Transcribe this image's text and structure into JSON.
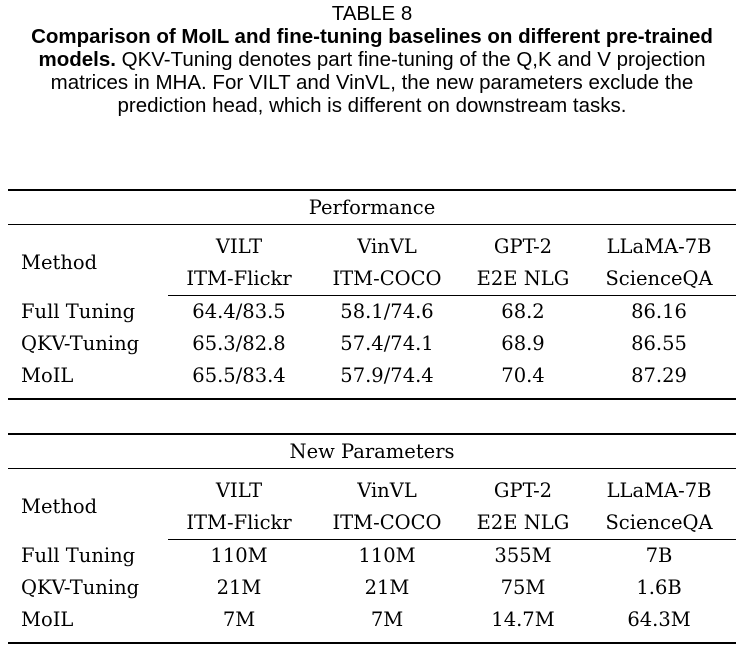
{
  "caption": {
    "label": "TABLE 8",
    "bold": "Comparison of MoIL and fine-tuning baselines on different pre-trained models.",
    "text": " QKV-Tuning denotes part fine-tuning of the Q,K and V projection matrices in MHA. For VILT and VinVL, the new parameters exclude the prediction head, which is different on downstream tasks."
  },
  "columns": {
    "method": "Method",
    "models": [
      "VILT",
      "VinVL",
      "GPT-2",
      "LLaMA-7B"
    ],
    "tasks": [
      "ITM-Flickr",
      "ITM-COCO",
      "E2E NLG",
      "ScienceQA"
    ]
  },
  "performance": {
    "section_title": "Performance",
    "rows": [
      {
        "method": "Full Tuning",
        "values": [
          "64.4/83.5",
          "58.1/74.6",
          "68.2",
          "86.16"
        ]
      },
      {
        "method": "QKV-Tuning",
        "values": [
          "65.3/82.8",
          "57.4/74.1",
          "68.9",
          "86.55"
        ]
      },
      {
        "method": "MoIL",
        "values": [
          "65.5/83.4",
          "57.9/74.4",
          "70.4",
          "87.29"
        ]
      }
    ]
  },
  "parameters": {
    "section_title": "New Parameters",
    "rows": [
      {
        "method": "Full Tuning",
        "values": [
          "110M",
          "110M",
          "355M",
          "7B"
        ]
      },
      {
        "method": "QKV-Tuning",
        "values": [
          "21M",
          "21M",
          "75M",
          "1.6B"
        ]
      },
      {
        "method": "MoIL",
        "values": [
          "7M",
          "7M",
          "14.7M",
          "64.3M"
        ]
      }
    ]
  }
}
